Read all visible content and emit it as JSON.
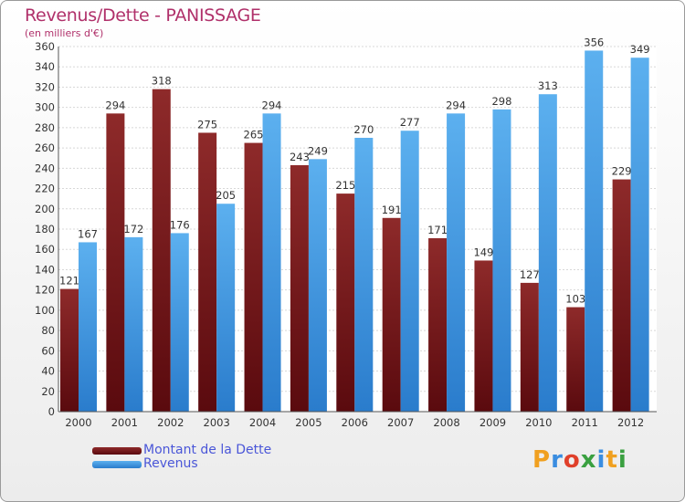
{
  "header": {
    "title": "Revenus/Dette - PANISSAGE",
    "subtitle": "(en milliers d'€)"
  },
  "colors": {
    "dette": "#7a1518",
    "revenus": "#3d8fdb",
    "title": "#b0306a",
    "legend_text": "#4a56d8"
  },
  "chart_data": {
    "type": "bar",
    "categories": [
      "2000",
      "2001",
      "2002",
      "2003",
      "2004",
      "2005",
      "2006",
      "2007",
      "2008",
      "2009",
      "2010",
      "2011",
      "2012"
    ],
    "series": [
      {
        "name": "Montant de la Dette",
        "values": [
          121,
          294,
          318,
          275,
          265,
          243,
          215,
          191,
          171,
          149,
          127,
          103,
          229
        ]
      },
      {
        "name": "Revenus",
        "values": [
          167,
          172,
          176,
          205,
          294,
          249,
          270,
          277,
          294,
          298,
          313,
          356,
          349
        ]
      }
    ],
    "ylim": [
      0,
      360
    ],
    "ytick_step": 20,
    "grid": true,
    "legend": "bottom-left"
  },
  "logo": {
    "letters": [
      "P",
      "r",
      "o",
      "x",
      "i",
      "t",
      "i"
    ],
    "colors": [
      "#f0a020",
      "#3a8de0",
      "#e0402a",
      "#3aa040",
      "#3a8de0",
      "#f0a020",
      "#3aa040"
    ]
  }
}
